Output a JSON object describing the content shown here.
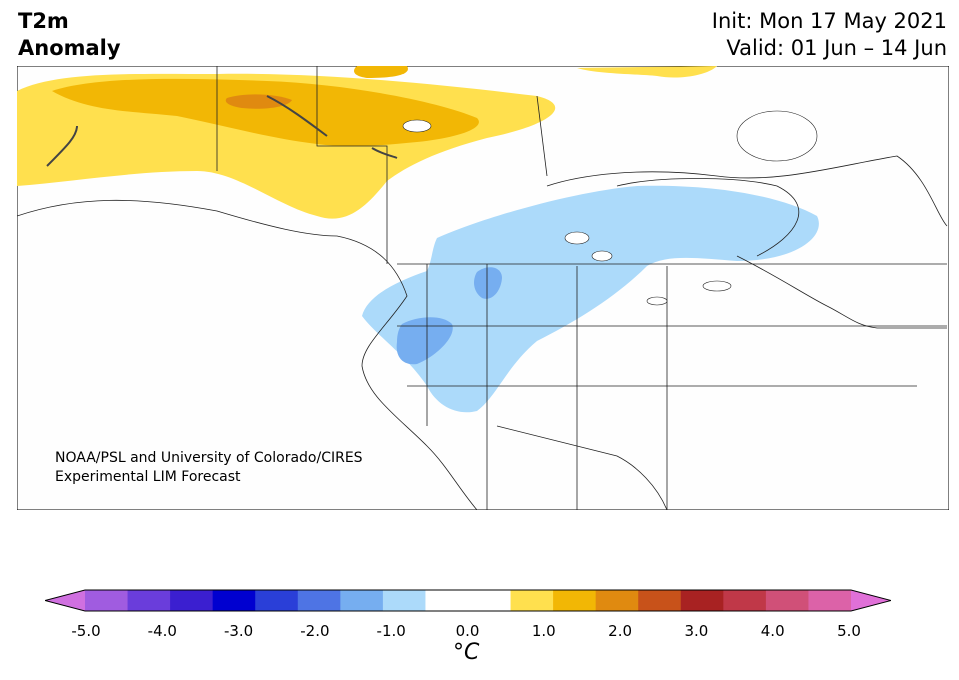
{
  "title": {
    "left_line1": "T2m",
    "left_line2": "Anomaly",
    "right_line1": "Init: Mon 17 May 2021",
    "right_line2": "Valid: 01 Jun – 14 Jun"
  },
  "credit": {
    "line1": "NOAA/PSL and University of Colorado/CIRES",
    "line2": "Experimental LIM Forecast"
  },
  "colorbar": {
    "unit": "°C",
    "ticks": [
      "-5.0",
      "-4.0",
      "-3.0",
      "-2.0",
      "-1.0",
      "0.0",
      "1.0",
      "2.0",
      "3.0",
      "4.0",
      "5.0"
    ],
    "tick_values": [
      -5,
      -4,
      -3,
      -2,
      -1,
      0,
      1,
      2,
      3,
      4,
      5
    ],
    "low_extend_color": "#d070e0",
    "high_extend_color": "#e070d8",
    "colors": [
      "#a05ce0",
      "#6a3ddb",
      "#3b1fd0",
      "#0000d0",
      "#2a3fd8",
      "#4e74e4",
      "#76aef0",
      "#acdafa",
      "#ffffff",
      "#ffffff",
      "#ffe04e",
      "#f2b705",
      "#e08a10",
      "#c8521a",
      "#a82222",
      "#c03848",
      "#d05078",
      "#dc62a8"
    ],
    "bounds": [
      -5.0,
      5.0
    ]
  },
  "map_legend": {
    "region": "North America",
    "anomaly_colors": {
      "light_blue": "#acdafa",
      "mid_blue": "#76aef0",
      "light_yellow": "#ffe04e",
      "orange_yellow": "#f2b705",
      "orange": "#e08a10"
    }
  }
}
